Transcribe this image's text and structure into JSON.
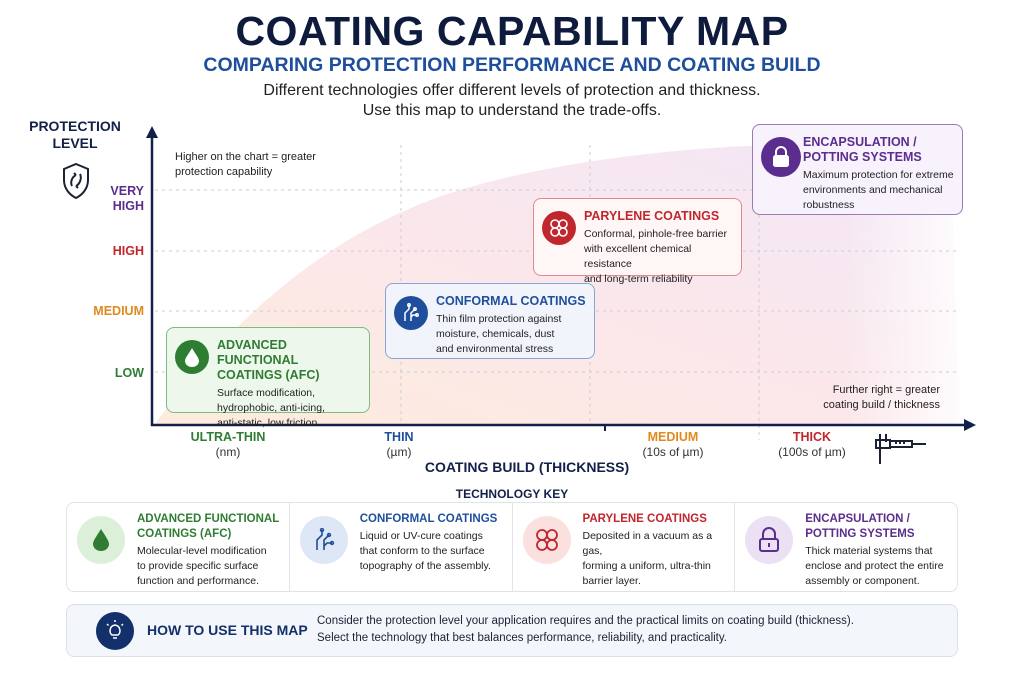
{
  "header": {
    "title": "COATING CAPABILITY MAP",
    "subtitle": "COMPARING PROTECTION PERFORMANCE AND COATING BUILD",
    "description_line1": "Different technologies offer different levels of protection and thickness.",
    "description_line2": "Use this map to understand the trade-offs."
  },
  "map": {
    "y_axis_title_line1": "PROTECTION",
    "y_axis_title_line2": "LEVEL",
    "y_axis_icon": "shield-icon",
    "y_note_line1": "Higher on the chart = greater",
    "y_note_line2": "protection capability",
    "y_levels": [
      {
        "line1": "VERY",
        "line2": "HIGH",
        "color": "#5b2d8e"
      },
      {
        "line1": "HIGH",
        "color": "#c0262d"
      },
      {
        "line1": "MEDIUM",
        "color": "#e08a1e"
      },
      {
        "line1": "LOW",
        "color": "#2e7d32"
      }
    ],
    "x_levels": [
      {
        "label": "ULTRA-THIN",
        "unit": "(nm)",
        "color": "#2e7d32"
      },
      {
        "label": "THIN",
        "unit": "(µm)",
        "color": "#1f4f9c"
      },
      {
        "label": "MEDIUM",
        "unit": "(10s of µm)",
        "color": "#e08a1e"
      },
      {
        "label": "THICK",
        "unit": "(100s of µm)",
        "color": "#c0262d"
      }
    ],
    "x_axis_title": "COATING BUILD (THICKNESS)",
    "x_axis_icon": "caliper-icon",
    "x_note_line1": "Further right = greater",
    "x_note_line2": "coating build / thickness",
    "cards": [
      {
        "title_line1": "ADVANCED FUNCTIONAL",
        "title_line2": "COATINGS (AFC)",
        "line1": "Surface modification,",
        "line2": "hydrophobic, anti-icing,",
        "line3": "anti-static, low friction",
        "icon": "droplet-icon",
        "color": "#2e7d32"
      },
      {
        "title_line1": "CONFORMAL COATINGS",
        "line1": "Thin film protection against",
        "line2": "moisture, chemicals, dust",
        "line3": "and environmental stress",
        "icon": "circuit-icon",
        "color": "#1f4f9c"
      },
      {
        "title_line1": "PARYLENE COATINGS",
        "line1": "Conformal, pinhole-free barrier",
        "line2": "with excellent chemical resistance",
        "line3": "and long-term reliability",
        "icon": "molecule-icon",
        "color": "#c0262d"
      },
      {
        "title_line1": "ENCAPSULATION /",
        "title_line2": "POTTING SYSTEMS",
        "line1": "Maximum protection for extreme",
        "line2": "environments and mechanical",
        "line3": "robustness",
        "icon": "lock-icon",
        "color": "#5b2d8e"
      }
    ]
  },
  "key": {
    "title": "TECHNOLOGY KEY",
    "items": [
      {
        "title_line1": "ADVANCED FUNCTIONAL",
        "title_line2": "COATINGS (AFC)",
        "line1": "Molecular-level modification",
        "line2": "to provide specific surface",
        "line3": "function and performance.",
        "icon": "droplet-icon"
      },
      {
        "title_line1": "CONFORMAL COATINGS",
        "line1": "Liquid or UV-cure coatings",
        "line2": "that conform to the surface",
        "line3": "topography of the assembly.",
        "icon": "circuit-icon"
      },
      {
        "title_line1": "PARYLENE COATINGS",
        "line1": "Deposited in a vacuum as a gas,",
        "line2": "forming a uniform, ultra-thin",
        "line3": "barrier layer.",
        "icon": "molecule-icon"
      },
      {
        "title_line1": "ENCAPSULATION /",
        "title_line2": "POTTING SYSTEMS",
        "line1": "Thick material systems that",
        "line2": "enclose and protect the entire",
        "line3": "assembly or component.",
        "icon": "lock-icon"
      }
    ]
  },
  "howto": {
    "title": "HOW TO USE THIS MAP",
    "icon": "lightbulb-icon",
    "line1": "Consider the protection level your application requires and the practical limits on coating build (thickness).",
    "line2": "Select the technology that best balances performance, reliability, and practicality."
  }
}
